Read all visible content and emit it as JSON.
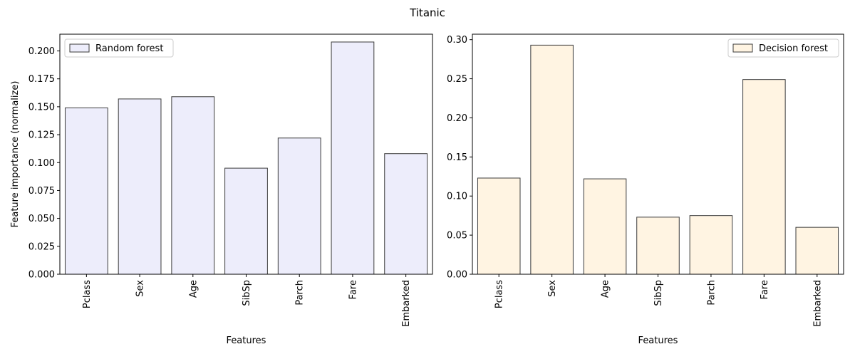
{
  "figure": {
    "suptitle": "Titanic"
  },
  "chart_data": [
    {
      "type": "bar",
      "categories": [
        "Pclass",
        "Sex",
        "Age",
        "SibSp",
        "Parch",
        "Fare",
        "Embarked"
      ],
      "series": [
        {
          "name": "Random forest",
          "values": [
            0.149,
            0.157,
            0.159,
            0.095,
            0.122,
            0.208,
            0.108
          ],
          "color": "#ededfb",
          "edge": "#3a3a3a"
        }
      ],
      "xlabel": "Features",
      "ylabel": "Feature importance (normalize)",
      "ylim": [
        0,
        0.215
      ],
      "yticks": [
        "0.000",
        "0.025",
        "0.050",
        "0.075",
        "0.100",
        "0.125",
        "0.150",
        "0.175",
        "0.200"
      ],
      "legend": "upper-left",
      "grid": false
    },
    {
      "type": "bar",
      "categories": [
        "Pclass",
        "Sex",
        "Age",
        "SibSp",
        "Parch",
        "Fare",
        "Embarked"
      ],
      "series": [
        {
          "name": "Decision forest",
          "values": [
            0.123,
            0.293,
            0.122,
            0.073,
            0.075,
            0.249,
            0.06
          ],
          "color": "#fff4e2",
          "edge": "#3a3a3a"
        }
      ],
      "xlabel": "Features",
      "ylabel": "",
      "ylim": [
        0,
        0.307
      ],
      "yticks": [
        "0.00",
        "0.05",
        "0.10",
        "0.15",
        "0.20",
        "0.25",
        "0.30"
      ],
      "legend": "upper-right",
      "grid": false
    }
  ]
}
